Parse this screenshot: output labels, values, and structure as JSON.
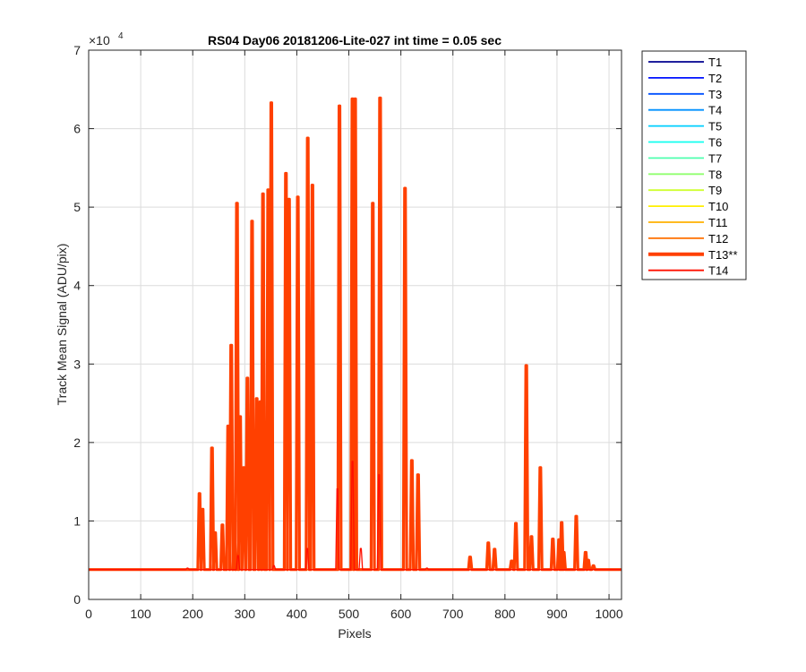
{
  "chart_data": {
    "type": "line",
    "title": "RS04 Day06 20181206-Lite-027 int time = 0.05 sec",
    "xlabel": "Pixels",
    "ylabel": "Track Mean Signal (ADU/pix)",
    "xlim": [
      0,
      1024
    ],
    "ylim": [
      0,
      70000
    ],
    "y_exponent_label": "×10",
    "y_exponent_power": "4",
    "x_ticks": [
      0,
      100,
      200,
      300,
      400,
      500,
      600,
      700,
      800,
      900,
      1000
    ],
    "y_ticks": [
      0,
      10000,
      20000,
      30000,
      40000,
      50000,
      60000,
      70000
    ],
    "y_tick_labels": [
      "0",
      "1",
      "2",
      "3",
      "4",
      "5",
      "6",
      "7"
    ],
    "grid": true,
    "legend_position": "outside-right",
    "baseline": 3800,
    "series": [
      {
        "name": "T1",
        "color": "#00008f",
        "baseline": 3800,
        "peaks": []
      },
      {
        "name": "T2",
        "color": "#0010ff",
        "baseline": 3800,
        "peaks": []
      },
      {
        "name": "T3",
        "color": "#0050ff",
        "baseline": 3800,
        "peaks": []
      },
      {
        "name": "T4",
        "color": "#0090ff",
        "baseline": 3800,
        "peaks": []
      },
      {
        "name": "T5",
        "color": "#00cfff",
        "baseline": 3800,
        "peaks": []
      },
      {
        "name": "T6",
        "color": "#10ffef",
        "baseline": 3800,
        "peaks": []
      },
      {
        "name": "T7",
        "color": "#50ffaf",
        "baseline": 3800,
        "peaks": []
      },
      {
        "name": "T8",
        "color": "#90ff6f",
        "baseline": 3800,
        "peaks": []
      },
      {
        "name": "T9",
        "color": "#cfff30",
        "baseline": 3800,
        "peaks": []
      },
      {
        "name": "T10",
        "color": "#ffef00",
        "baseline": 3800,
        "peaks": []
      },
      {
        "name": "T11",
        "color": "#ffb000",
        "baseline": 3800,
        "peaks": []
      },
      {
        "name": "T12",
        "color": "#ff7000",
        "baseline": 3800,
        "peaks": []
      },
      {
        "name": "T13**",
        "color": "#ff4000",
        "baseline": 3800,
        "bold": true,
        "peaks": [
          [
            213,
            13500
          ],
          [
            219,
            11500
          ],
          [
            237,
            19300
          ],
          [
            243,
            8500
          ],
          [
            257,
            9500
          ],
          [
            268,
            22100
          ],
          [
            274,
            32400
          ],
          [
            280,
            9800
          ],
          [
            285,
            50500
          ],
          [
            291,
            23300
          ],
          [
            298,
            16800
          ],
          [
            305,
            28200
          ],
          [
            314,
            48200
          ],
          [
            323,
            25600
          ],
          [
            330,
            25200
          ],
          [
            335,
            51700
          ],
          [
            345,
            52200
          ],
          [
            351,
            63300
          ],
          [
            379,
            54300
          ],
          [
            385,
            51000
          ],
          [
            402,
            51300
          ],
          [
            421,
            58800
          ],
          [
            430,
            52800
          ],
          [
            482,
            62900
          ],
          [
            507,
            63800
          ],
          [
            512,
            63800
          ],
          [
            546,
            50500
          ],
          [
            560,
            63900
          ],
          [
            608,
            52400
          ],
          [
            621,
            17700
          ],
          [
            633,
            15900
          ],
          [
            733,
            5400
          ],
          [
            768,
            7200
          ],
          [
            780,
            6400
          ],
          [
            813,
            4900
          ],
          [
            821,
            9700
          ],
          [
            841,
            29800
          ],
          [
            851,
            8000
          ],
          [
            868,
            16800
          ],
          [
            892,
            7700
          ],
          [
            904,
            7600
          ],
          [
            909,
            9800
          ],
          [
            913,
            6000
          ],
          [
            937,
            10600
          ],
          [
            955,
            6000
          ],
          [
            960,
            5000
          ],
          [
            970,
            4300
          ]
        ]
      },
      {
        "name": "T14",
        "color": "#ff1000",
        "baseline": 3800,
        "peaks": [
          [
            190,
            4000
          ],
          [
            287,
            5600
          ],
          [
            356,
            4300
          ],
          [
            420,
            6500
          ],
          [
            478,
            14100
          ],
          [
            507,
            17600
          ],
          [
            523,
            6500
          ],
          [
            558,
            15900
          ],
          [
            650,
            4000
          ]
        ]
      }
    ]
  }
}
